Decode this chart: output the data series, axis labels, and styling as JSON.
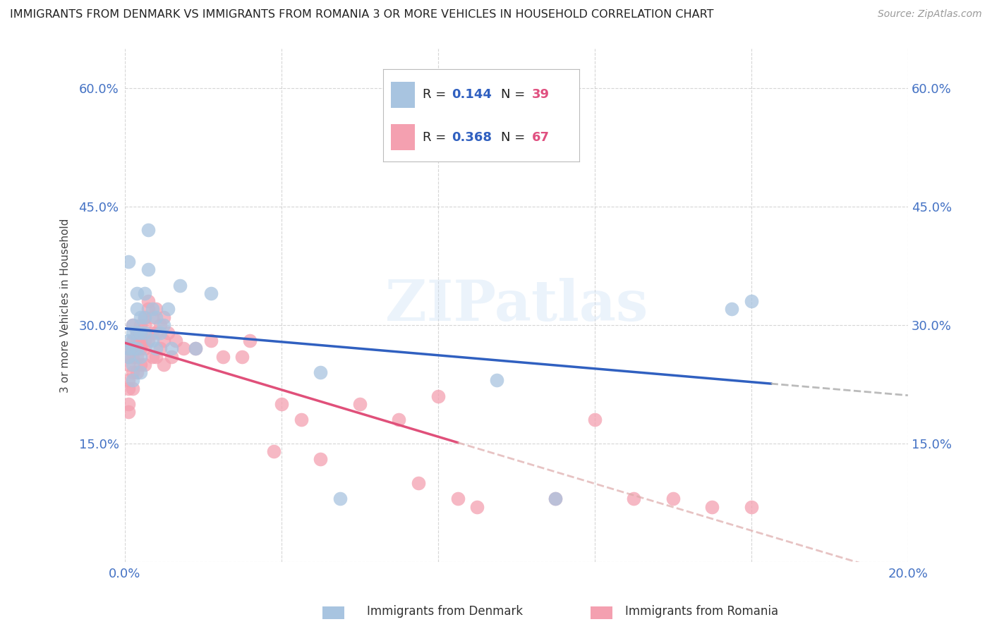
{
  "title": "IMMIGRANTS FROM DENMARK VS IMMIGRANTS FROM ROMANIA 3 OR MORE VEHICLES IN HOUSEHOLD CORRELATION CHART",
  "source": "Source: ZipAtlas.com",
  "ylabel": "3 or more Vehicles in Household",
  "xlim": [
    0.0,
    0.2
  ],
  "ylim": [
    0.0,
    0.65
  ],
  "x_ticks": [
    0.0,
    0.04,
    0.08,
    0.12,
    0.16,
    0.2
  ],
  "x_tick_labels": [
    "0.0%",
    "",
    "",
    "",
    "",
    "20.0%"
  ],
  "y_ticks": [
    0.0,
    0.15,
    0.3,
    0.45,
    0.6
  ],
  "y_tick_labels_left": [
    "",
    "15.0%",
    "30.0%",
    "45.0%",
    "60.0%"
  ],
  "denmark_color": "#a8c4e0",
  "romania_color": "#f4a0b0",
  "denmark_line_color": "#3060c0",
  "romania_line_color": "#e0507a",
  "denmark_R": 0.144,
  "denmark_N": 39,
  "romania_R": 0.368,
  "romania_N": 67,
  "tick_color": "#4472c4",
  "watermark": "ZIPatlas",
  "denmark_x": [
    0.001,
    0.001,
    0.001,
    0.001,
    0.002,
    0.002,
    0.002,
    0.002,
    0.002,
    0.003,
    0.003,
    0.003,
    0.003,
    0.004,
    0.004,
    0.004,
    0.004,
    0.005,
    0.005,
    0.005,
    0.006,
    0.006,
    0.007,
    0.007,
    0.008,
    0.008,
    0.009,
    0.01,
    0.011,
    0.012,
    0.014,
    0.018,
    0.022,
    0.05,
    0.055,
    0.095,
    0.11,
    0.155,
    0.16
  ],
  "denmark_y": [
    0.28,
    0.27,
    0.26,
    0.38,
    0.3,
    0.29,
    0.27,
    0.25,
    0.23,
    0.29,
    0.27,
    0.34,
    0.32,
    0.31,
    0.29,
    0.26,
    0.24,
    0.34,
    0.31,
    0.29,
    0.42,
    0.37,
    0.32,
    0.28,
    0.31,
    0.27,
    0.29,
    0.3,
    0.32,
    0.27,
    0.35,
    0.27,
    0.34,
    0.24,
    0.08,
    0.23,
    0.08,
    0.32,
    0.33
  ],
  "romania_x": [
    0.001,
    0.001,
    0.001,
    0.001,
    0.001,
    0.001,
    0.001,
    0.002,
    0.002,
    0.002,
    0.002,
    0.002,
    0.002,
    0.003,
    0.003,
    0.003,
    0.003,
    0.003,
    0.004,
    0.004,
    0.004,
    0.004,
    0.004,
    0.005,
    0.005,
    0.005,
    0.005,
    0.005,
    0.006,
    0.006,
    0.006,
    0.007,
    0.007,
    0.007,
    0.008,
    0.008,
    0.008,
    0.009,
    0.009,
    0.01,
    0.01,
    0.01,
    0.011,
    0.012,
    0.013,
    0.015,
    0.018,
    0.022,
    0.025,
    0.03,
    0.032,
    0.038,
    0.04,
    0.045,
    0.05,
    0.06,
    0.07,
    0.075,
    0.08,
    0.085,
    0.09,
    0.11,
    0.12,
    0.13,
    0.14,
    0.15,
    0.16
  ],
  "romania_y": [
    0.27,
    0.26,
    0.25,
    0.23,
    0.22,
    0.2,
    0.19,
    0.3,
    0.28,
    0.27,
    0.26,
    0.24,
    0.22,
    0.29,
    0.28,
    0.27,
    0.26,
    0.24,
    0.3,
    0.29,
    0.28,
    0.27,
    0.25,
    0.31,
    0.3,
    0.28,
    0.27,
    0.25,
    0.33,
    0.32,
    0.28,
    0.31,
    0.29,
    0.26,
    0.32,
    0.29,
    0.26,
    0.3,
    0.27,
    0.31,
    0.28,
    0.25,
    0.29,
    0.26,
    0.28,
    0.27,
    0.27,
    0.28,
    0.26,
    0.26,
    0.28,
    0.14,
    0.2,
    0.18,
    0.13,
    0.2,
    0.18,
    0.1,
    0.21,
    0.08,
    0.07,
    0.08,
    0.18,
    0.08,
    0.08,
    0.07,
    0.07
  ]
}
